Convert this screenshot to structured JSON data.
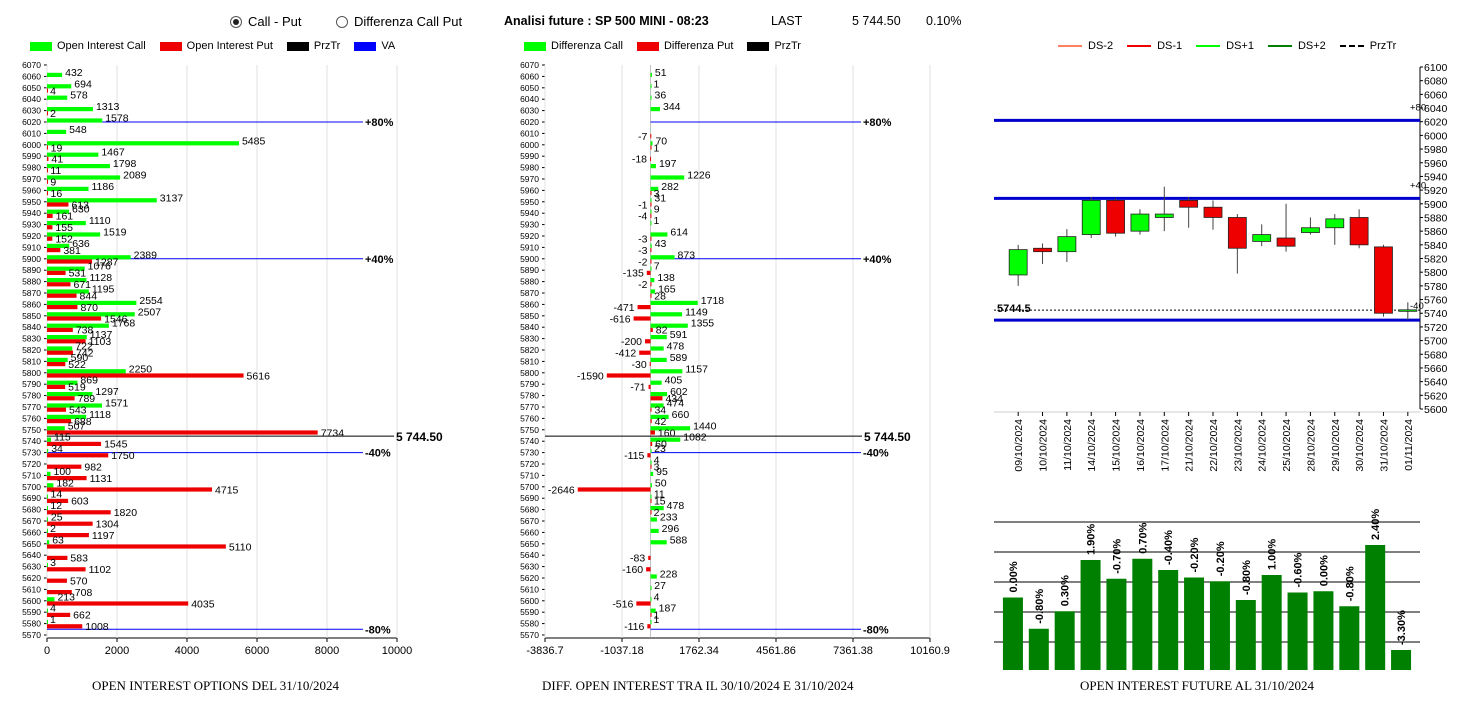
{
  "controls": {
    "radio_call_put": "Call - Put",
    "radio_diff": "Differenza Call Put",
    "selected": "call_put"
  },
  "header": {
    "title": "Analisi future : SP 500 MINI - 08:23",
    "last_label": "LAST",
    "last_value": "5 744.50",
    "change": "0.10%"
  },
  "colors": {
    "green": "#00ff00",
    "red": "#ee0000",
    "black": "#000000",
    "blue": "#0000ff",
    "dark_green": "#008000",
    "dark_blue": "#0000cc"
  },
  "chart_data": [
    {
      "id": "oi_options",
      "type": "bar",
      "orientation": "horizontal",
      "title": "OPEN INTEREST OPTIONS DEL 31/10/2024",
      "legend": [
        "Open Interest Call",
        "Open Interest Put",
        "PrzTr",
        "VA"
      ],
      "strikes": [
        6070,
        6060,
        6050,
        6040,
        6030,
        6020,
        6010,
        6000,
        5990,
        5980,
        5970,
        5960,
        5950,
        5940,
        5930,
        5920,
        5910,
        5900,
        5890,
        5880,
        5870,
        5860,
        5850,
        5840,
        5830,
        5820,
        5810,
        5800,
        5790,
        5780,
        5770,
        5760,
        5750,
        5740,
        5730,
        5720,
        5710,
        5700,
        5690,
        5680,
        5670,
        5660,
        5650,
        5640,
        5630,
        5620,
        5610,
        5600,
        5590,
        5580,
        5570
      ],
      "call": [
        null,
        432,
        694,
        578,
        1313,
        1578,
        548,
        5485,
        1467,
        1798,
        2089,
        1186,
        3137,
        630,
        1110,
        1519,
        636,
        2389,
        1076,
        1128,
        1195,
        2554,
        2507,
        1768,
        1137,
        722,
        590,
        2250,
        869,
        1297,
        1571,
        1118,
        507,
        115,
        34,
        null,
        100,
        182,
        14,
        12,
        25,
        2,
        63,
        null,
        3,
        null,
        null,
        213,
        4,
        1,
        null
      ],
      "put": [
        null,
        null,
        4,
        null,
        2,
        null,
        null,
        19,
        41,
        11,
        9,
        16,
        613,
        161,
        155,
        152,
        381,
        1287,
        531,
        671,
        844,
        870,
        1546,
        738,
        1103,
        742,
        522,
        5616,
        519,
        789,
        543,
        688,
        7734,
        1545,
        1750,
        982,
        1131,
        4715,
        603,
        1820,
        1304,
        1197,
        5110,
        583,
        1102,
        570,
        708,
        4035,
        662,
        1008,
        null
      ],
      "xaxis_ticks": [
        "0",
        "2000",
        "4000",
        "6000",
        "8000",
        "10000"
      ],
      "xlim": [
        0,
        10000
      ],
      "last_label": "5 744.50",
      "last_price": 5744.5,
      "va_lines": [
        {
          "strike": 6020,
          "label": "+80%"
        },
        {
          "strike": 5900,
          "label": "+40%"
        },
        {
          "strike": 5730,
          "label": "-40%"
        },
        {
          "strike": 5575,
          "label": "-80%"
        }
      ]
    },
    {
      "id": "oi_diff",
      "type": "bar",
      "orientation": "horizontal",
      "title": "DIFF. OPEN INTEREST TRA IL 30/10/2024 E 31/10/2024",
      "legend": [
        "Differenza Call",
        "Differenza Put",
        "PrzTr"
      ],
      "strikes": [
        6070,
        6060,
        6050,
        6040,
        6030,
        6020,
        6010,
        6000,
        5990,
        5980,
        5970,
        5960,
        5950,
        5940,
        5930,
        5920,
        5910,
        5900,
        5890,
        5880,
        5870,
        5860,
        5850,
        5840,
        5830,
        5820,
        5810,
        5800,
        5790,
        5780,
        5770,
        5760,
        5750,
        5740,
        5730,
        5720,
        5710,
        5700,
        5690,
        5680,
        5670,
        5660,
        5650,
        5640,
        5630,
        5620,
        5610,
        5600,
        5590,
        5580,
        5570
      ],
      "call": [
        null,
        51,
        1,
        36,
        344,
        null,
        null,
        70,
        null,
        197,
        1226,
        282,
        31,
        9,
        1,
        614,
        43,
        873,
        7,
        138,
        165,
        1718,
        1149,
        1355,
        591,
        478,
        589,
        1157,
        405,
        602,
        474,
        660,
        1440,
        1082,
        23,
        4,
        95,
        50,
        11,
        478,
        233,
        296,
        588,
        null,
        null,
        228,
        27,
        4,
        187,
        1,
        null
      ],
      "put": [
        null,
        null,
        null,
        null,
        null,
        null,
        -7,
        1,
        -18,
        null,
        null,
        3,
        -1,
        -4,
        null,
        -3,
        -3,
        -2,
        -135,
        -2,
        28,
        -471,
        -616,
        82,
        -200,
        -412,
        -30,
        -1590,
        -71,
        434,
        34,
        42,
        160,
        60,
        -115,
        3,
        null,
        -2646,
        15,
        2,
        null,
        null,
        null,
        -83,
        -160,
        null,
        null,
        -516,
        1,
        -116,
        null
      ],
      "xaxis_ticks": [
        "-3836.7",
        "-1037.18",
        "1762.34",
        "4561.86",
        "7361.38",
        "10160.9"
      ],
      "xlim": [
        -3836.7,
        10160.9
      ],
      "last_label": "5 744.50",
      "va_lines": [
        {
          "strike": 6020,
          "label": "+80%"
        },
        {
          "strike": 5900,
          "label": "+40%"
        },
        {
          "strike": 5730,
          "label": "-40%"
        },
        {
          "strike": 5575,
          "label": "-80%"
        }
      ]
    },
    {
      "id": "candles",
      "type": "candlestick",
      "legend": [
        "DS-2",
        "DS-1",
        "DS+1",
        "DS+2",
        "PrzTr"
      ],
      "dates": [
        "09/10/2024",
        "10/10/2024",
        "11/10/2024",
        "14/10/2024",
        "15/10/2024",
        "16/10/2024",
        "17/10/2024",
        "21/10/2024",
        "22/10/2024",
        "23/10/2024",
        "24/10/2024",
        "25/10/2024",
        "28/10/2024",
        "29/10/2024",
        "30/10/2024",
        "31/10/2024",
        "01/11/2024"
      ],
      "open": [
        5796,
        5835,
        5830,
        5855,
        5905,
        5860,
        5880,
        5905,
        5895,
        5880,
        5845,
        5850,
        5858,
        5865,
        5880,
        5837,
        5743
      ],
      "close": [
        5833,
        5830,
        5852,
        5905,
        5857,
        5885,
        5885,
        5895,
        5880,
        5835,
        5855,
        5838,
        5865,
        5878,
        5840,
        5740,
        5745
      ],
      "high": [
        5840,
        5842,
        5863,
        5910,
        5908,
        5892,
        5925,
        5910,
        5905,
        5885,
        5870,
        5900,
        5880,
        5885,
        5892,
        5840,
        5756
      ],
      "low": [
        5780,
        5812,
        5815,
        5850,
        5852,
        5855,
        5860,
        5865,
        5862,
        5798,
        5838,
        5830,
        5855,
        5840,
        5835,
        5735,
        5730
      ],
      "yaxis_ticks": [
        "6100",
        "6080",
        "6060",
        "6040",
        "6020",
        "6000",
        "5980",
        "5960",
        "5940",
        "5920",
        "5900",
        "5880",
        "5860",
        "5840",
        "5820",
        "5800",
        "5780",
        "5760",
        "5740",
        "5720",
        "5700",
        "5680",
        "5660",
        "5640",
        "5620",
        "5600"
      ],
      "ylim": [
        5600,
        6100
      ],
      "hlines": [
        {
          "value": 6022,
          "label": "+80"
        },
        {
          "value": 5908,
          "label": "+40"
        },
        {
          "value": 5730
        }
      ],
      "last_label": "5744.5",
      "last_value": 5744.5,
      "right_label_last": "-40"
    },
    {
      "id": "oi_future",
      "type": "bar",
      "title": "OPEN INTEREST FUTURE AL 31/10/2024",
      "labels": [
        "0.00%",
        "-0.80%",
        "0.30%",
        "1.90%",
        "-0.70%",
        "0.70%",
        "-0.40%",
        "-0.20%",
        "-0.20%",
        "-0.80%",
        "1.00%",
        "-0.60%",
        "0.00%",
        "-0.80%",
        "2.40%",
        "-3.30%"
      ],
      "heights": [
        0.58,
        0.33,
        0.47,
        0.88,
        0.73,
        0.89,
        0.8,
        0.74,
        0.71,
        0.56,
        0.76,
        0.62,
        0.63,
        0.51,
        1.0,
        0.16
      ]
    }
  ]
}
